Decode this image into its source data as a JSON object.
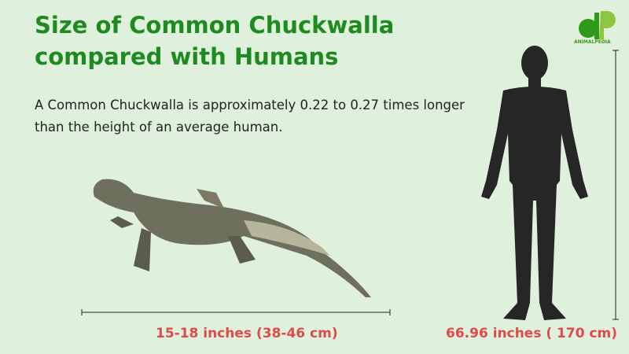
{
  "title": "Size of Common Chuckwalla compared with Humans",
  "description": "A Common Chuckwalla is approximately 0.22 to 0.27 times longer than the height of an average human.",
  "animal": {
    "name": "Common Chuckwalla",
    "size_label": "15-18 inches (38-46 cm)"
  },
  "human": {
    "size_label": "66.96 inches ( 170 cm)"
  },
  "logo": {
    "text": "ANIMALPEDIA"
  },
  "colors": {
    "title": "#1f8a1f",
    "size_label": "#e04a4a",
    "background": "#dff1dd"
  }
}
